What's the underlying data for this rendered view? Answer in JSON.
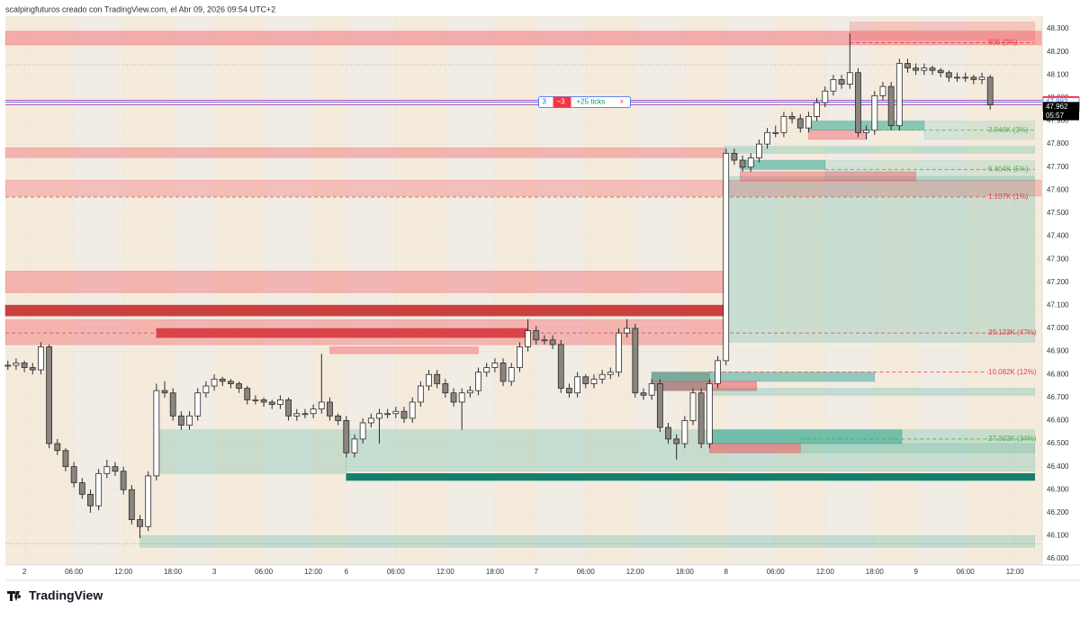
{
  "header": {
    "caption": "scalpingfuturos creado con TradingView.com, el Abr 09, 2026 09:54 UTC+2",
    "logo": "TradingView"
  },
  "chart_data": {
    "type": "candlestick",
    "up_color": "#ffffff",
    "down_color": "#8a8580",
    "wick_color": "#2a2a2a",
    "xlim": [
      -0.3,
      125.3
    ],
    "ylim": [
      45973,
      48355
    ],
    "xticks": [
      {
        "value": 2,
        "label": "2"
      },
      {
        "value": 8,
        "label": "06:00"
      },
      {
        "value": 14,
        "label": "12:00"
      },
      {
        "value": 20,
        "label": "18:00"
      },
      {
        "value": 25,
        "label": "3"
      },
      {
        "value": 31,
        "label": "06:00"
      },
      {
        "value": 37,
        "label": "12:00"
      },
      {
        "value": 41,
        "label": "6"
      },
      {
        "value": 47,
        "label": "06:00"
      },
      {
        "value": 53,
        "label": "12:00"
      },
      {
        "value": 59,
        "label": "18:00"
      },
      {
        "value": 64,
        "label": "7"
      },
      {
        "value": 70,
        "label": "06:00"
      },
      {
        "value": 76,
        "label": "12:00"
      },
      {
        "value": 82,
        "label": "18:00"
      },
      {
        "value": 87,
        "label": "8"
      },
      {
        "value": 93,
        "label": "06:00"
      },
      {
        "value": 99,
        "label": "12:00"
      },
      {
        "value": 105,
        "label": "18:00"
      },
      {
        "value": 110,
        "label": "9"
      },
      {
        "value": 116,
        "label": "06:00"
      },
      {
        "value": 122,
        "label": "12:00"
      }
    ],
    "yticks": [
      {
        "value": 48300,
        "label": "48.300"
      },
      {
        "value": 48200,
        "label": "48.200"
      },
      {
        "value": 48100,
        "label": "48.100"
      },
      {
        "value": 48000,
        "label": "48.000"
      },
      {
        "value": 47900,
        "label": "47.900"
      },
      {
        "value": 47800,
        "label": "47.800"
      },
      {
        "value": 47700,
        "label": "47.700"
      },
      {
        "value": 47600,
        "label": "47.600"
      },
      {
        "value": 47500,
        "label": "47.500"
      },
      {
        "value": 47400,
        "label": "47.400"
      },
      {
        "value": 47300,
        "label": "47.300"
      },
      {
        "value": 47200,
        "label": "47.200"
      },
      {
        "value": 47100,
        "label": "47.100"
      },
      {
        "value": 47000,
        "label": "47.000"
      },
      {
        "value": 46900,
        "label": "46.900"
      },
      {
        "value": 46800,
        "label": "46.800"
      },
      {
        "value": 46700,
        "label": "46.700"
      },
      {
        "value": 46600,
        "label": "46.600"
      },
      {
        "value": 46500,
        "label": "46.500"
      },
      {
        "value": 46400,
        "label": "46.400"
      },
      {
        "value": 46300,
        "label": "46.300"
      },
      {
        "value": 46200,
        "label": "46.200"
      },
      {
        "value": 46100,
        "label": "46.100"
      },
      {
        "value": 46000,
        "label": "46.000"
      }
    ],
    "candles": [
      [
        46840,
        46860,
        46820,
        46840
      ],
      [
        46840,
        46870,
        46820,
        46850
      ],
      [
        46850,
        46860,
        46810,
        46830
      ],
      [
        46830,
        46850,
        46800,
        46820
      ],
      [
        46820,
        46940,
        46800,
        46920
      ],
      [
        46920,
        46930,
        46480,
        46500
      ],
      [
        46500,
        46520,
        46450,
        46470
      ],
      [
        46470,
        46480,
        46380,
        46400
      ],
      [
        46400,
        46420,
        46310,
        46330
      ],
      [
        46330,
        46350,
        46260,
        46280
      ],
      [
        46280,
        46300,
        46200,
        46230
      ],
      [
        46230,
        46390,
        46210,
        46370
      ],
      [
        46370,
        46430,
        46350,
        46400
      ],
      [
        46400,
        46420,
        46360,
        46380
      ],
      [
        46380,
        46400,
        46280,
        46300
      ],
      [
        46300,
        46320,
        46150,
        46170
      ],
      [
        46170,
        46190,
        46090,
        46140
      ],
      [
        46140,
        46380,
        46120,
        46360
      ],
      [
        46360,
        46760,
        46340,
        46730
      ],
      [
        46730,
        46770,
        46700,
        46720
      ],
      [
        46720,
        46740,
        46600,
        46620
      ],
      [
        46620,
        46640,
        46560,
        46580
      ],
      [
        46580,
        46640,
        46560,
        46620
      ],
      [
        46620,
        46740,
        46600,
        46720
      ],
      [
        46720,
        46770,
        46700,
        46750
      ],
      [
        46750,
        46800,
        46730,
        46780
      ],
      [
        46780,
        46790,
        46750,
        46770
      ],
      [
        46770,
        46780,
        46740,
        46760
      ],
      [
        46760,
        46770,
        46720,
        46740
      ],
      [
        46740,
        46750,
        46670,
        46690
      ],
      [
        46690,
        46710,
        46670,
        46690
      ],
      [
        46690,
        46700,
        46660,
        46680
      ],
      [
        46680,
        46690,
        46650,
        46670
      ],
      [
        46670,
        46710,
        46650,
        46690
      ],
      [
        46690,
        46700,
        46600,
        46620
      ],
      [
        46620,
        46650,
        46600,
        46630
      ],
      [
        46630,
        46650,
        46610,
        46630
      ],
      [
        46630,
        46670,
        46610,
        46650
      ],
      [
        46650,
        46890,
        46630,
        46680
      ],
      [
        46680,
        46700,
        46600,
        46620
      ],
      [
        46620,
        46630,
        46580,
        46600
      ],
      [
        46600,
        46620,
        46440,
        46460
      ],
      [
        46460,
        46540,
        46440,
        46520
      ],
      [
        46520,
        46610,
        46500,
        46590
      ],
      [
        46590,
        46630,
        46570,
        46610
      ],
      [
        46610,
        46650,
        46500,
        46630
      ],
      [
        46630,
        46650,
        46610,
        46630
      ],
      [
        46630,
        46660,
        46610,
        46640
      ],
      [
        46640,
        46660,
        46590,
        46610
      ],
      [
        46610,
        46700,
        46590,
        46680
      ],
      [
        46680,
        46770,
        46660,
        46750
      ],
      [
        46750,
        46820,
        46730,
        46800
      ],
      [
        46800,
        46820,
        46740,
        46760
      ],
      [
        46760,
        46780,
        46700,
        46720
      ],
      [
        46720,
        46740,
        46660,
        46680
      ],
      [
        46680,
        46740,
        46560,
        46720
      ],
      [
        46720,
        46750,
        46700,
        46730
      ],
      [
        46730,
        46830,
        46710,
        46810
      ],
      [
        46810,
        46850,
        46790,
        46830
      ],
      [
        46830,
        46870,
        46810,
        46850
      ],
      [
        46850,
        46870,
        46750,
        46770
      ],
      [
        46770,
        46850,
        46750,
        46830
      ],
      [
        46830,
        46940,
        46810,
        46920
      ],
      [
        46920,
        47040,
        46900,
        46990
      ],
      [
        46990,
        47010,
        46930,
        46950
      ],
      [
        46950,
        46970,
        46930,
        46950
      ],
      [
        46950,
        46970,
        46910,
        46930
      ],
      [
        46930,
        46950,
        46720,
        46740
      ],
      [
        46740,
        46760,
        46700,
        46720
      ],
      [
        46720,
        46810,
        46700,
        46790
      ],
      [
        46790,
        46800,
        46740,
        46760
      ],
      [
        46760,
        46800,
        46740,
        46780
      ],
      [
        46780,
        46820,
        46760,
        46800
      ],
      [
        46800,
        46830,
        46780,
        46810
      ],
      [
        46810,
        47000,
        46790,
        46980
      ],
      [
        46980,
        47040,
        46960,
        47000
      ],
      [
        47000,
        47020,
        46700,
        46720
      ],
      [
        46720,
        46740,
        46690,
        46710
      ],
      [
        46710,
        46780,
        46690,
        46760
      ],
      [
        46760,
        46780,
        46550,
        46570
      ],
      [
        46570,
        46590,
        46500,
        46520
      ],
      [
        46520,
        46540,
        46430,
        46500
      ],
      [
        46500,
        46620,
        46480,
        46600
      ],
      [
        46600,
        46740,
        46580,
        46720
      ],
      [
        46720,
        46740,
        46480,
        46500
      ],
      [
        46500,
        46780,
        46480,
        46760
      ],
      [
        46760,
        46880,
        46740,
        46860
      ],
      [
        46860,
        47780,
        46840,
        47760
      ],
      [
        47760,
        47780,
        47710,
        47730
      ],
      [
        47730,
        47750,
        47680,
        47700
      ],
      [
        47700,
        47760,
        47680,
        47740
      ],
      [
        47740,
        47820,
        47720,
        47800
      ],
      [
        47800,
        47870,
        47780,
        47850
      ],
      [
        47850,
        47880,
        47830,
        47850
      ],
      [
        47850,
        47940,
        47830,
        47920
      ],
      [
        47920,
        47940,
        47890,
        47910
      ],
      [
        47910,
        47930,
        47850,
        47870
      ],
      [
        47870,
        47940,
        47850,
        47920
      ],
      [
        47920,
        48000,
        47900,
        47980
      ],
      [
        47980,
        48050,
        47960,
        48030
      ],
      [
        48030,
        48100,
        48010,
        48080
      ],
      [
        48080,
        48100,
        48040,
        48060
      ],
      [
        48060,
        48280,
        48040,
        48110
      ],
      [
        48110,
        48130,
        47830,
        47850
      ],
      [
        47850,
        47880,
        47820,
        47860
      ],
      [
        47860,
        48030,
        47840,
        48010
      ],
      [
        48010,
        48070,
        47990,
        48050
      ],
      [
        48050,
        48070,
        47860,
        47880
      ],
      [
        47880,
        48170,
        47860,
        48150
      ],
      [
        48150,
        48170,
        48110,
        48130
      ],
      [
        48130,
        48150,
        48100,
        48120
      ],
      [
        48120,
        48150,
        48100,
        48130
      ],
      [
        48130,
        48140,
        48100,
        48120
      ],
      [
        48120,
        48130,
        48090,
        48110
      ],
      [
        48110,
        48120,
        48070,
        48090
      ],
      [
        48090,
        48110,
        48070,
        48090
      ],
      [
        48090,
        48110,
        48070,
        48090
      ],
      [
        48090,
        48100,
        48060,
        48080
      ],
      [
        48080,
        48110,
        48060,
        48090
      ],
      [
        48090,
        48100,
        47950,
        47970
      ]
    ],
    "zones": [
      {
        "from": 48290,
        "to": 48230,
        "x": [
          -0.3,
          125.3
        ],
        "color": "rgba(242,54,69,0.35)"
      },
      {
        "from": 48330,
        "to": 48250,
        "x": [
          102,
          124.4
        ],
        "color": "rgba(242,54,69,0.2)"
      },
      {
        "from": 47784,
        "to": 47741,
        "x": [
          -0.3,
          86.8
        ],
        "color": "rgba(242,54,69,0.3)"
      },
      {
        "from": 47644,
        "to": 47574,
        "x": [
          -0.3,
          125.3
        ],
        "color": "rgba(242,54,69,0.25)"
      },
      {
        "from": 47249,
        "to": 47155,
        "x": [
          -0.3,
          86.8
        ],
        "color": "rgba(242,54,69,0.3)"
      },
      {
        "from": 47101,
        "to": 47054,
        "x": [
          -0.3,
          86.8
        ],
        "color": "#c9403f"
      },
      {
        "from": 47038,
        "to": 46929,
        "x": [
          -0.3,
          86.8
        ],
        "color": "rgba(242,54,69,0.3)"
      },
      {
        "from": 47000,
        "to": 46960,
        "x": [
          18,
          63
        ],
        "color": "#d8454a"
      },
      {
        "from": 46920,
        "to": 46890,
        "x": [
          39,
          57
        ],
        "color": "rgba(242,54,69,0.35)"
      },
      {
        "from": 47660,
        "to": 46940,
        "x": [
          87.3,
          124.4
        ],
        "color": "rgba(8,153,129,0.17)"
      },
      {
        "from": 47790,
        "to": 47760,
        "x": [
          86.8,
          124.4
        ],
        "color": "rgba(8,153,129,0.2)"
      },
      {
        "from": 47730,
        "to": 47640,
        "x": [
          99,
          124.4
        ],
        "color": "rgba(8,153,129,0.12)"
      },
      {
        "from": 47730,
        "to": 47690,
        "x": [
          88.7,
          99
        ],
        "color": "rgba(8,153,129,0.45)"
      },
      {
        "from": 47680,
        "to": 47640,
        "x": [
          88.7,
          110
        ],
        "color": "rgba(242,54,69,0.35)"
      },
      {
        "from": 47900,
        "to": 47820,
        "x": [
          111,
          124.4
        ],
        "color": "rgba(8,153,129,0.12)"
      },
      {
        "from": 47900,
        "to": 47860,
        "x": [
          97,
          111
        ],
        "color": "rgba(8,153,129,0.45)"
      },
      {
        "from": 47860,
        "to": 47820,
        "x": [
          97,
          104
        ],
        "color": "rgba(242,54,69,0.35)"
      },
      {
        "from": 46810,
        "to": 46770,
        "x": [
          78,
          105
        ],
        "color": "rgba(8,153,129,0.4)"
      },
      {
        "from": 46770,
        "to": 46730,
        "x": [
          78,
          90.7
        ],
        "color": "rgba(242,54,69,0.45)"
      },
      {
        "from": 46810,
        "to": 46730,
        "x": [
          78,
          85
        ],
        "color": "rgba(90,120,110,0.4)"
      },
      {
        "from": 46740,
        "to": 46710,
        "x": [
          85,
          124.4
        ],
        "color": "rgba(8,153,129,0.2)"
      },
      {
        "from": 46560,
        "to": 46370,
        "x": [
          18,
          41
        ],
        "color": "rgba(8,153,129,0.18)"
      },
      {
        "from": 46560,
        "to": 46380,
        "x": [
          41,
          124.4
        ],
        "color": "rgba(8,153,129,0.18)"
      },
      {
        "from": 46560,
        "to": 46500,
        "x": [
          85,
          108.3
        ],
        "color": "rgba(8,153,129,0.45)"
      },
      {
        "from": 46500,
        "to": 46460,
        "x": [
          85,
          96
        ],
        "color": "rgba(242,54,69,0.45)"
      },
      {
        "from": 46500,
        "to": 46460,
        "x": [
          96,
          124.4
        ],
        "color": "rgba(8,153,129,0.15)"
      },
      {
        "from": 46370,
        "to": 46340,
        "x": [
          41,
          124.4
        ],
        "color": "#17806b"
      },
      {
        "from": 46100,
        "to": 46050,
        "x": [
          16,
          124.4
        ],
        "color": "rgba(8,153,129,0.2)"
      }
    ],
    "levels": [
      {
        "price": 48240,
        "label": "606 (0%)",
        "x": [
          102,
          124.4
        ],
        "color": "#f23645"
      },
      {
        "price": 47860,
        "label": "3.946K (3%)",
        "x": [
          104,
          124.4
        ],
        "color": "#4caf50"
      },
      {
        "price": 47690,
        "label": "6.404K (5%)",
        "x": [
          99,
          124.4
        ],
        "color": "#4caf50"
      },
      {
        "price": 47570,
        "label": "1.107K (1%)",
        "x": [
          -0.3,
          118.7
        ],
        "color": "#f23645"
      },
      {
        "price": 46980,
        "label": "39.133K (47%)",
        "x": [
          -0.3,
          124.4
        ],
        "color": "#f23645"
      },
      {
        "price": 46810,
        "label": "10.082K (12%)",
        "x": [
          85,
          118.7
        ],
        "color": "#f23645"
      },
      {
        "price": 46520,
        "label": "27.302K (34%)",
        "x": [
          96,
          124.4
        ],
        "color": "#4caf50"
      }
    ],
    "lines": [
      {
        "price": 48144,
        "color": "#999999",
        "dash": "1,2"
      },
      {
        "price": 46066,
        "color": "#999999",
        "dash": "1,2"
      },
      {
        "price": 47990,
        "color": "#9c27b0",
        "dash": ""
      },
      {
        "price": 47970,
        "color": "#9c27b0",
        "dash": ""
      },
      {
        "price": 47982,
        "color": "#2962ff",
        "dash": ""
      }
    ],
    "price_tags": [
      {
        "value": 47987,
        "label": "47.987",
        "color": "#f23645",
        "text": "#ffffff"
      },
      {
        "value": 47982,
        "label": "47.982",
        "color": "#ffffff",
        "text": "#2962ff"
      },
      {
        "value": 47962,
        "label": "47.962",
        "color": "#000000",
        "text": "#ffffff"
      }
    ],
    "countdown": "05:57",
    "position_tool": {
      "price": 47982,
      "x": 64.3,
      "quantity": "3",
      "pnl": "−3",
      "ticks": "+25 ticks",
      "close": "×"
    }
  }
}
